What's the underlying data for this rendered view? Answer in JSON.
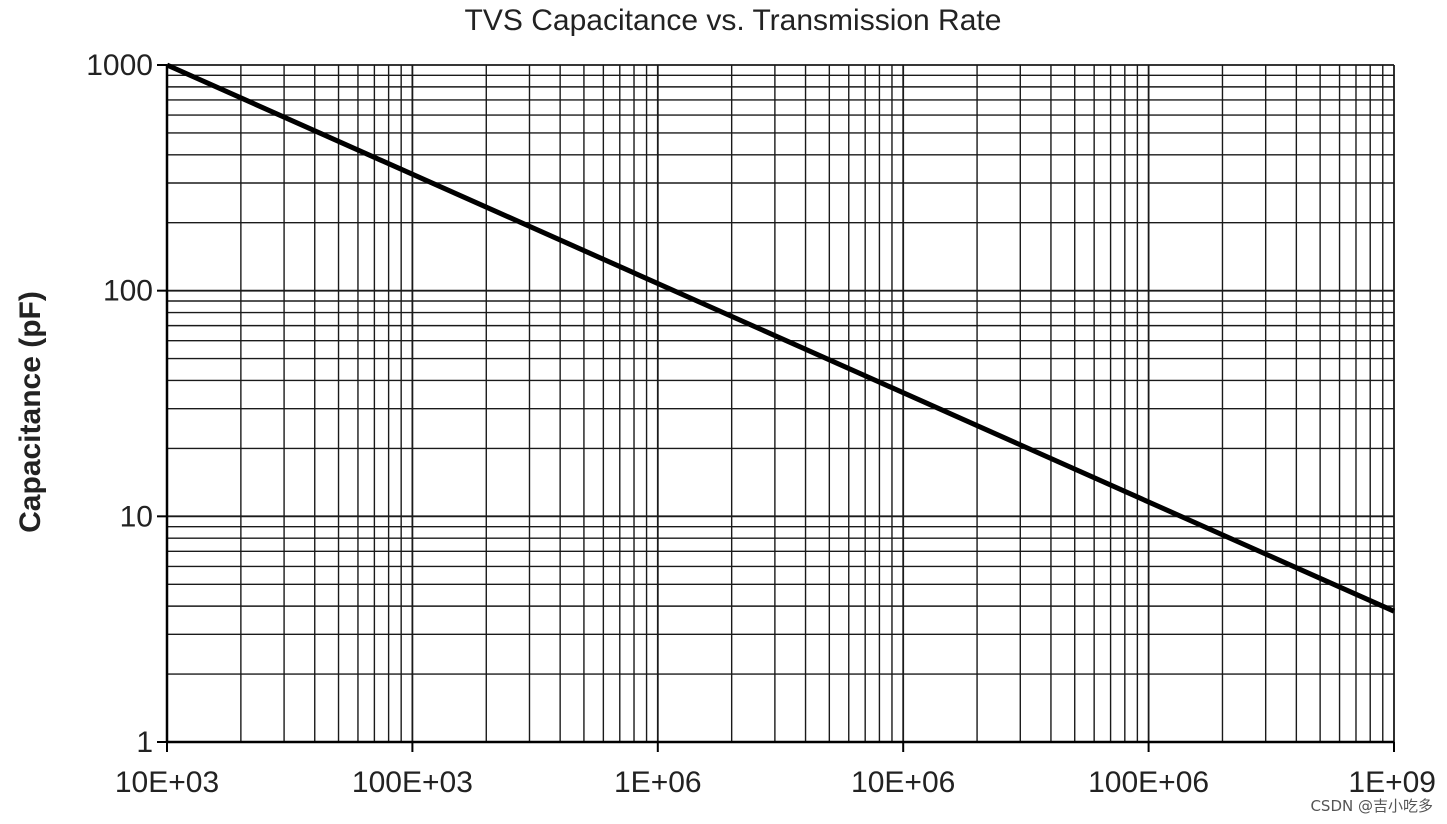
{
  "chart_data": {
    "type": "line",
    "title": "TVS Capacitance vs. Transmission Rate",
    "xlabel": "",
    "ylabel": "Capacitance (pF)",
    "x_scale": "log",
    "y_scale": "log",
    "xlim": [
      10000,
      1000000000
    ],
    "ylim": [
      1,
      1000
    ],
    "grid": true,
    "x_ticks": [
      10000,
      100000,
      1000000,
      10000000,
      100000000,
      1000000000
    ],
    "x_tick_labels": [
      "10E+03",
      "100E+03",
      "1E+06",
      "10E+06",
      "100E+06",
      "1E+09"
    ],
    "y_ticks": [
      1,
      10,
      100,
      1000
    ],
    "y_tick_labels": [
      "1",
      "10",
      "100",
      "1000"
    ],
    "series": [
      {
        "x": [
          10000,
          1000000000
        ],
        "y": [
          1000,
          3.8
        ],
        "color": "#000000"
      }
    ]
  },
  "watermark": "CSDN @吉小吃多"
}
